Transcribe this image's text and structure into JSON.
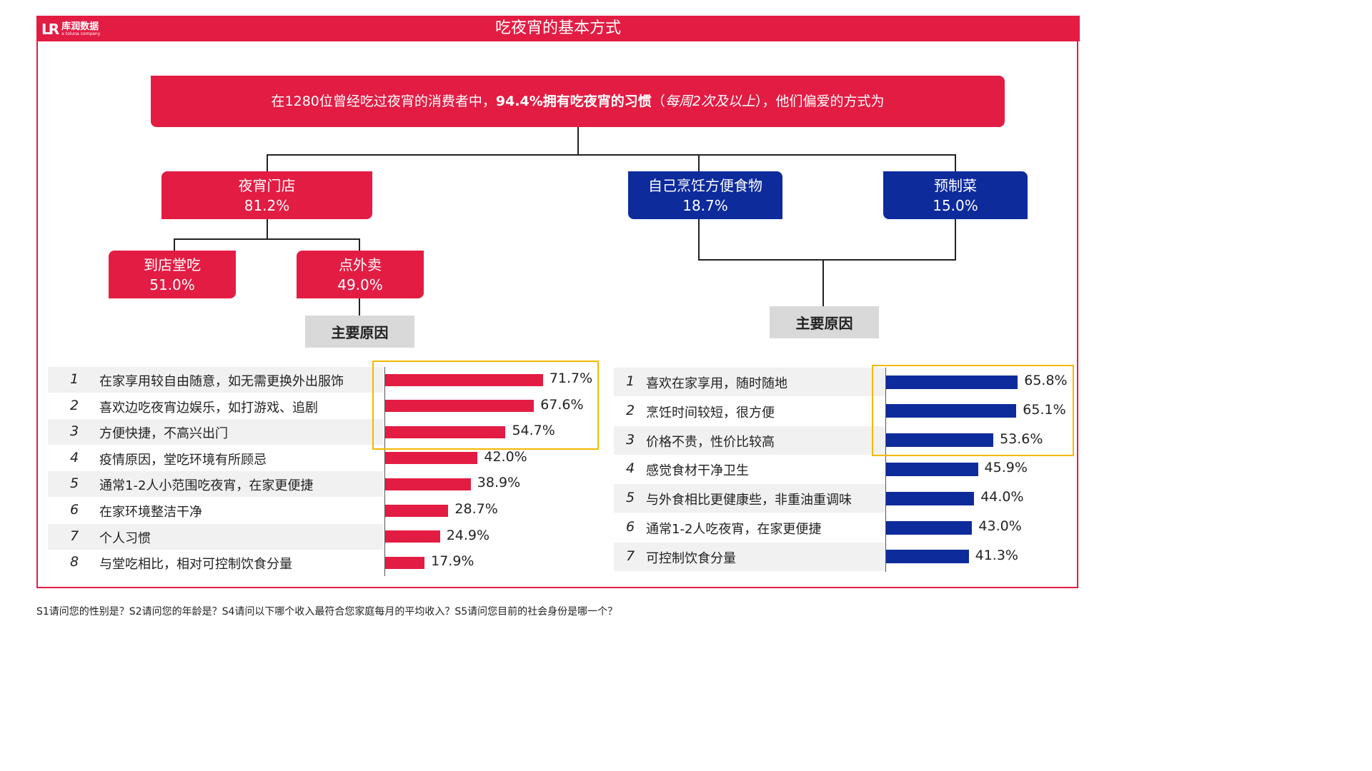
{
  "header": {
    "logo_mark": "LR",
    "logo_name": "库润数据",
    "logo_sub": "a toluna company",
    "title": "吃夜宵的基本方式"
  },
  "summary": {
    "part1": "在1280位曾经吃过夜宵的消费者中，",
    "bold": "94.4%拥有吃夜宵的习惯",
    "paren_open": "（",
    "italic": "每周2次及以上",
    "paren_close": "）",
    "part2": "，他们偏爱的方式为"
  },
  "nodes": {
    "store": {
      "label": "夜宵门店",
      "pct": "81.2%"
    },
    "cook": {
      "label": "自己烹饪方便食物",
      "pct": "18.7%"
    },
    "prepared": {
      "label": "预制菜",
      "pct": "15.0%"
    },
    "dine_in": {
      "label": "到店堂吃",
      "pct": "51.0%"
    },
    "takeout": {
      "label": "点外卖",
      "pct": "49.0%"
    }
  },
  "reasons_label": "主要原因",
  "colors": {
    "red": "#e31c43",
    "blue": "#0e2b9c",
    "highlight": "#f5b800",
    "row_bg": "#f1f1f1"
  },
  "chart_data": [
    {
      "type": "bar",
      "orientation": "horizontal",
      "title": "",
      "color": "#e31c43",
      "highlighted_top": 3,
      "categories": [
        "在家享用较自由随意，如无需更换外出服饰",
        "喜欢边吃夜宵边娱乐，如打游戏、追剧",
        "方便快捷，不高兴出门",
        "疫情原因，堂吃环境有所顾忌",
        "通常1-2人小范围吃夜宵，在家更便捷",
        "在家环境整洁干净",
        "个人习惯",
        "与堂吃相比，相对可控制饮食分量"
      ],
      "ranks": [
        "1",
        "2",
        "3",
        "4",
        "5",
        "6",
        "7",
        "8"
      ],
      "values": [
        71.7,
        67.6,
        54.7,
        42.0,
        38.9,
        28.7,
        24.9,
        17.9
      ],
      "labels": [
        "71.7%",
        "67.6%",
        "54.7%",
        "42.0%",
        "38.9%",
        "28.7%",
        "24.9%",
        "17.9%"
      ]
    },
    {
      "type": "bar",
      "orientation": "horizontal",
      "title": "",
      "color": "#0e2b9c",
      "highlighted_top": 3,
      "categories": [
        "喜欢在家享用，随时随地",
        "烹饪时间较短，很方便",
        "价格不贵，性价比较高",
        "感觉食材干净卫生",
        "与外食相比更健康些，非重油重调味",
        "通常1-2人吃夜宵，在家更便捷",
        "可控制饮食分量"
      ],
      "ranks": [
        "1",
        "2",
        "3",
        "4",
        "5",
        "6",
        "7"
      ],
      "values": [
        65.8,
        65.1,
        53.6,
        45.9,
        44.0,
        43.0,
        41.3
      ],
      "labels": [
        "65.8%",
        "65.1%",
        "53.6%",
        "45.9%",
        "44.0%",
        "43.0%",
        "41.3%"
      ]
    }
  ],
  "footnote": "S1请问您的性别是？S2请问您的年龄是？S4请问以下哪个收入最符合您家庭每月的平均收入？S5请问您目前的社会身份是哪一个？"
}
